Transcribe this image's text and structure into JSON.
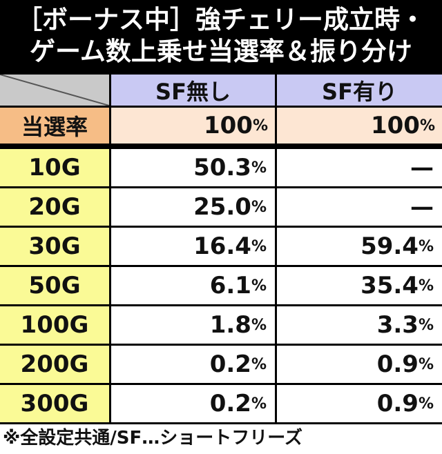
{
  "title": {
    "lines": [
      "［ボーナス中］強チェリー成立時・",
      "ゲーム数上乗せ当選率＆振り分け"
    ]
  },
  "table": {
    "columns": [
      "SF無し",
      "SF有り"
    ],
    "summary": {
      "label": "当選率",
      "cells": [
        "100%",
        "100%"
      ]
    },
    "rows": [
      {
        "label": "10G",
        "cells": [
          "50.3%",
          "—"
        ]
      },
      {
        "label": "20G",
        "cells": [
          "25.0%",
          "—"
        ]
      },
      {
        "label": "30G",
        "cells": [
          "16.4%",
          "59.4%"
        ]
      },
      {
        "label": "50G",
        "cells": [
          "6.1%",
          "35.4%"
        ]
      },
      {
        "label": "100G",
        "cells": [
          "1.8%",
          "3.3%"
        ]
      },
      {
        "label": "200G",
        "cells": [
          "0.2%",
          "0.9%"
        ]
      },
      {
        "label": "300G",
        "cells": [
          "0.2%",
          "0.9%"
        ]
      }
    ]
  },
  "footnote": "※全設定共通/SF…ショートフリーズ"
}
